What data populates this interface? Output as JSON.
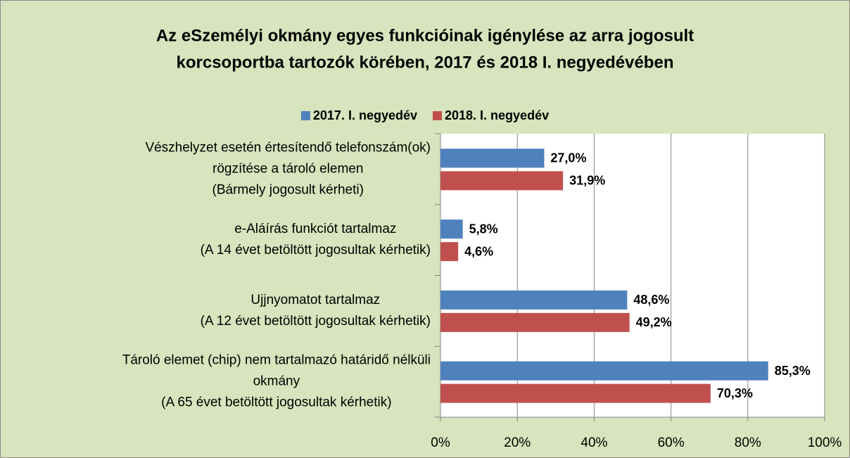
{
  "chart_data": {
    "type": "bar",
    "orientation": "horizontal",
    "title": [
      "Az eSzemélyi  okmány egyes funkcióinak igénylése az arra jogosult",
      "korcsoportba tartozók körében, 2017 és 2018 I. negyedévében"
    ],
    "categories": [
      [
        "Vészhelyzet esetén értesítendő telefonszám(ok)",
        "rögzítése a tároló elemen",
        "(Bármely jogosult kérheti)"
      ],
      [
        "e-Aláírás funkciót tartalmaz",
        "(A 14 évet betöltött jogosultak kérhetik)"
      ],
      [
        "Ujjnyomatot tartalmaz",
        "(A 12 évet betöltött jogosultak kérhetik)"
      ],
      [
        "Tároló elemet (chip) nem tartalmazó határidő nélküli",
        "okmány",
        "(A 65 évet betöltött jogosultak kérhetik)"
      ]
    ],
    "series": [
      {
        "name": "2017. I. negyedév",
        "color": "#4f81bd",
        "values": [
          27.0,
          5.8,
          48.6,
          85.3
        ],
        "value_labels": [
          "27,0%",
          "5,8%",
          "48,6%",
          "85,3%"
        ]
      },
      {
        "name": "2018. I. negyedév",
        "color": "#c0504d",
        "values": [
          31.9,
          4.6,
          49.2,
          70.3
        ],
        "value_labels": [
          "31,9%",
          "4,6%",
          "49,2%",
          "70,3%"
        ]
      }
    ],
    "xlim": [
      0,
      100
    ],
    "xticks": [
      {
        "value": 0,
        "label": "0%"
      },
      {
        "value": 20,
        "label": "20%"
      },
      {
        "value": 40,
        "label": "40%"
      },
      {
        "value": 60,
        "label": "60%"
      },
      {
        "value": 80,
        "label": "80%"
      },
      {
        "value": 100,
        "label": "100%"
      }
    ],
    "grid": true,
    "legend": "top"
  }
}
